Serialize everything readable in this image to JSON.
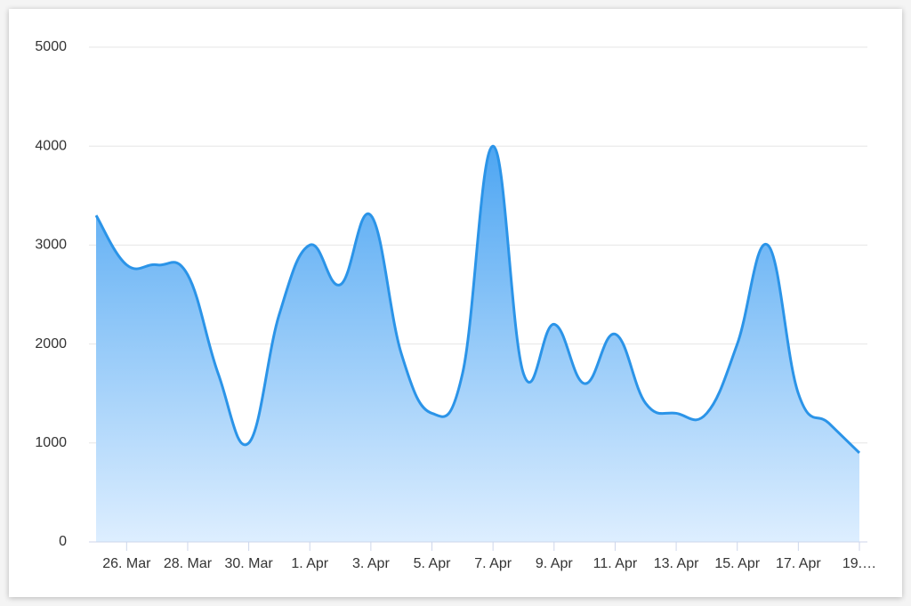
{
  "chart_data": {
    "type": "areaspline",
    "categories": [
      null,
      "26. Mar",
      null,
      "28. Mar",
      null,
      "30. Mar",
      null,
      "1. Apr",
      null,
      "3. Apr",
      null,
      "5. Apr",
      null,
      "7. Apr",
      null,
      "9. Apr",
      null,
      "11. Apr",
      null,
      "13. Apr",
      null,
      "15. Apr",
      null,
      "17. Apr",
      null,
      "19.…"
    ],
    "values": [
      3300,
      2800,
      2800,
      2700,
      1700,
      1000,
      2300,
      3000,
      2600,
      3300,
      1900,
      1300,
      1700,
      4000,
      1700,
      2200,
      1600,
      2100,
      1400,
      1300,
      1300,
      2000,
      3000,
      1500,
      1200,
      900
    ],
    "color": "#2b94e8",
    "ylim": [
      0,
      5000
    ],
    "yticks": [
      0,
      1000,
      2000,
      3000,
      4000,
      5000
    ],
    "grid": true
  }
}
